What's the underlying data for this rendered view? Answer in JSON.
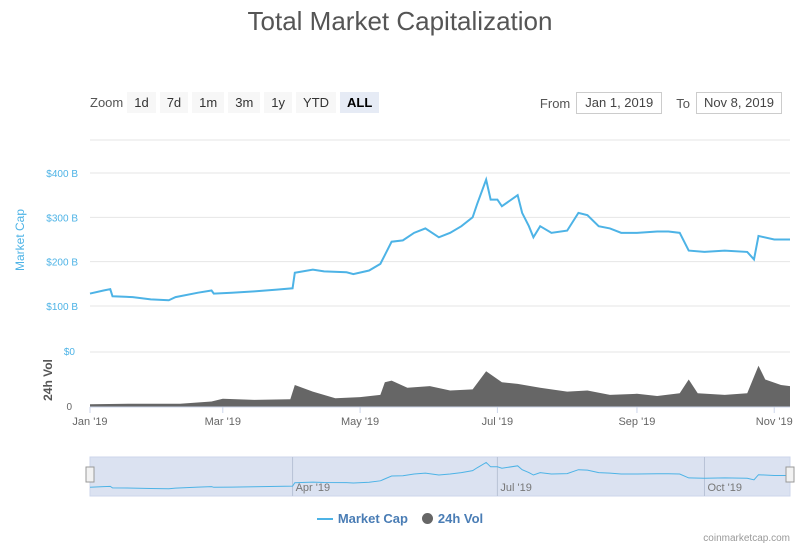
{
  "title": "Total Market Capitalization",
  "zoom": {
    "label": "Zoom",
    "buttons": [
      "1d",
      "7d",
      "1m",
      "3m",
      "1y",
      "YTD",
      "ALL"
    ],
    "active": "ALL"
  },
  "range": {
    "from_label": "From",
    "from": "Jan 1, 2019",
    "to_label": "To",
    "to": "Nov 8, 2019"
  },
  "colors": {
    "market_cap": "#4db3e6",
    "volume": "#666666",
    "navigator_bg": "#ccd6eb"
  },
  "legend": {
    "market_cap": "Market Cap",
    "volume": "24h Vol"
  },
  "credit": "coinmarketcap.com",
  "chart_data": [
    {
      "type": "line",
      "ylabel": "Market Cap",
      "yticks": [
        "$100 B",
        "$200 B",
        "$300 B",
        "$400 B"
      ],
      "ylim": [
        100,
        400
      ],
      "grid": true,
      "x_ticks": [
        "Jan '19",
        "Mar '19",
        "May '19",
        "Jul '19",
        "Sep '19",
        "Nov '19"
      ],
      "xlim": [
        "2019-01-01",
        "2019-11-08"
      ],
      "series": [
        {
          "name": "Market Cap",
          "points": [
            [
              "2019-01-01",
              128
            ],
            [
              "2019-01-07",
              135
            ],
            [
              "2019-01-10",
              138
            ],
            [
              "2019-01-11",
              122
            ],
            [
              "2019-01-20",
              120
            ],
            [
              "2019-01-28",
              115
            ],
            [
              "2019-02-05",
              113
            ],
            [
              "2019-02-08",
              120
            ],
            [
              "2019-02-18",
              130
            ],
            [
              "2019-02-24",
              135
            ],
            [
              "2019-02-25",
              128
            ],
            [
              "2019-03-05",
              130
            ],
            [
              "2019-03-15",
              133
            ],
            [
              "2019-03-25",
              137
            ],
            [
              "2019-04-01",
              140
            ],
            [
              "2019-04-02",
              175
            ],
            [
              "2019-04-10",
              182
            ],
            [
              "2019-04-15",
              178
            ],
            [
              "2019-04-25",
              176
            ],
            [
              "2019-04-28",
              172
            ],
            [
              "2019-05-05",
              180
            ],
            [
              "2019-05-10",
              195
            ],
            [
              "2019-05-12",
              215
            ],
            [
              "2019-05-15",
              245
            ],
            [
              "2019-05-20",
              248
            ],
            [
              "2019-05-25",
              265
            ],
            [
              "2019-05-30",
              275
            ],
            [
              "2019-06-05",
              255
            ],
            [
              "2019-06-10",
              265
            ],
            [
              "2019-06-15",
              280
            ],
            [
              "2019-06-20",
              300
            ],
            [
              "2019-06-22",
              330
            ],
            [
              "2019-06-26",
              385
            ],
            [
              "2019-06-28",
              340
            ],
            [
              "2019-07-01",
              340
            ],
            [
              "2019-07-03",
              325
            ],
            [
              "2019-07-10",
              350
            ],
            [
              "2019-07-12",
              310
            ],
            [
              "2019-07-15",
              280
            ],
            [
              "2019-07-17",
              255
            ],
            [
              "2019-07-20",
              280
            ],
            [
              "2019-07-25",
              265
            ],
            [
              "2019-08-01",
              270
            ],
            [
              "2019-08-06",
              310
            ],
            [
              "2019-08-10",
              305
            ],
            [
              "2019-08-15",
              280
            ],
            [
              "2019-08-20",
              275
            ],
            [
              "2019-08-25",
              265
            ],
            [
              "2019-09-01",
              265
            ],
            [
              "2019-09-10",
              268
            ],
            [
              "2019-09-15",
              268
            ],
            [
              "2019-09-20",
              265
            ],
            [
              "2019-09-24",
              225
            ],
            [
              "2019-10-01",
              222
            ],
            [
              "2019-10-10",
              225
            ],
            [
              "2019-10-20",
              222
            ],
            [
              "2019-10-23",
              205
            ],
            [
              "2019-10-25",
              258
            ],
            [
              "2019-11-01",
              250
            ],
            [
              "2019-11-08",
              250
            ]
          ]
        }
      ]
    },
    {
      "type": "area",
      "ylabel": "24h Vol",
      "yticks": [
        "0",
        "$0"
      ],
      "series": [
        {
          "name": "24h Vol",
          "points": [
            [
              "2019-01-01",
              5
            ],
            [
              "2019-01-20",
              6
            ],
            [
              "2019-02-10",
              6
            ],
            [
              "2019-02-24",
              10
            ],
            [
              "2019-03-01",
              15
            ],
            [
              "2019-03-15",
              13
            ],
            [
              "2019-03-31",
              14
            ],
            [
              "2019-04-02",
              40
            ],
            [
              "2019-04-10",
              28
            ],
            [
              "2019-04-20",
              16
            ],
            [
              "2019-05-01",
              18
            ],
            [
              "2019-05-10",
              22
            ],
            [
              "2019-05-12",
              45
            ],
            [
              "2019-05-15",
              48
            ],
            [
              "2019-05-22",
              35
            ],
            [
              "2019-06-01",
              38
            ],
            [
              "2019-06-10",
              30
            ],
            [
              "2019-06-20",
              32
            ],
            [
              "2019-06-26",
              65
            ],
            [
              "2019-07-03",
              45
            ],
            [
              "2019-07-10",
              42
            ],
            [
              "2019-07-20",
              35
            ],
            [
              "2019-08-01",
              28
            ],
            [
              "2019-08-10",
              30
            ],
            [
              "2019-08-20",
              22
            ],
            [
              "2019-09-01",
              24
            ],
            [
              "2019-09-10",
              20
            ],
            [
              "2019-09-20",
              25
            ],
            [
              "2019-09-24",
              50
            ],
            [
              "2019-09-28",
              25
            ],
            [
              "2019-10-10",
              22
            ],
            [
              "2019-10-20",
              25
            ],
            [
              "2019-10-25",
              75
            ],
            [
              "2019-10-28",
              50
            ],
            [
              "2019-11-04",
              40
            ],
            [
              "2019-11-08",
              38
            ]
          ]
        }
      ]
    },
    {
      "type": "navigator",
      "x_ticks": [
        "Apr '19",
        "Jul '19",
        "Oct '19"
      ]
    }
  ]
}
